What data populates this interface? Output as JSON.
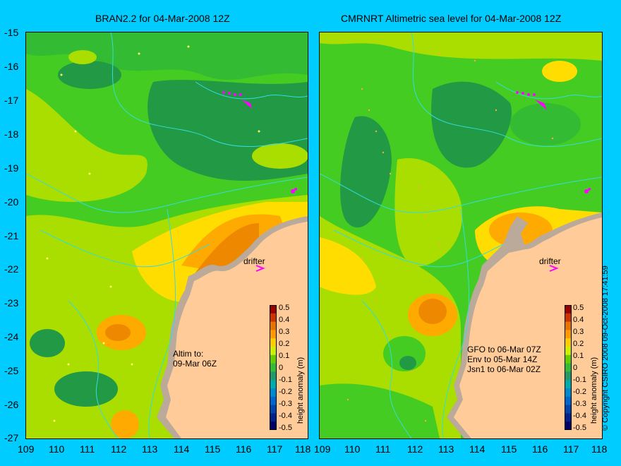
{
  "left_panel": {
    "title": "BRAN2.2 for 04-Mar-2008 12Z",
    "drifter_label": "drifter",
    "altim_note": [
      "Altim to:",
      "09-Mar 06Z"
    ]
  },
  "right_panel": {
    "title": "CMRNRT Altimetric sea level  for 04-Mar-2008 12Z",
    "drifter_label": "drifter",
    "altim_note": [
      "GFO to 06-Mar 07Z",
      "Env to 05-Mar 14Z",
      "Jsn1 to 06-Mar 02Z"
    ]
  },
  "axes": {
    "y_ticks": [
      "-15",
      "-16",
      "-17",
      "-18",
      "-19",
      "-20",
      "-21",
      "-22",
      "-23",
      "-24",
      "-25",
      "-26",
      "-27"
    ],
    "x_ticks": [
      "109",
      "110",
      "111",
      "112",
      "113",
      "114",
      "115",
      "116",
      "117",
      "118"
    ],
    "y_range": [
      -27,
      -15
    ],
    "x_range": [
      109,
      118
    ]
  },
  "colorbar": {
    "label": "height anomaly (m)",
    "ticks": [
      "0.5",
      "0.4",
      "0.3",
      "0.2",
      "0.1",
      "0",
      "-0.1",
      "-0.2",
      "-0.3",
      "-0.4",
      "-0.5"
    ],
    "colors": [
      "#990000",
      "#cc3300",
      "#e67300",
      "#ff9900",
      "#ffcc00",
      "#ccee00",
      "#66cc00",
      "#33bb33",
      "#229966",
      "#00aaaa",
      "#0088cc",
      "#0066cc",
      "#0044aa",
      "#002288",
      "#000066"
    ]
  },
  "copyright": "© Copyright CSIRO 2008   09-Oct-2008 17:41:59",
  "colors": {
    "background": "#00ccff",
    "land": "#ffcc99",
    "shelf": "#bbaa99",
    "drifter": "#ff00ff",
    "contour": "#33dddd"
  }
}
